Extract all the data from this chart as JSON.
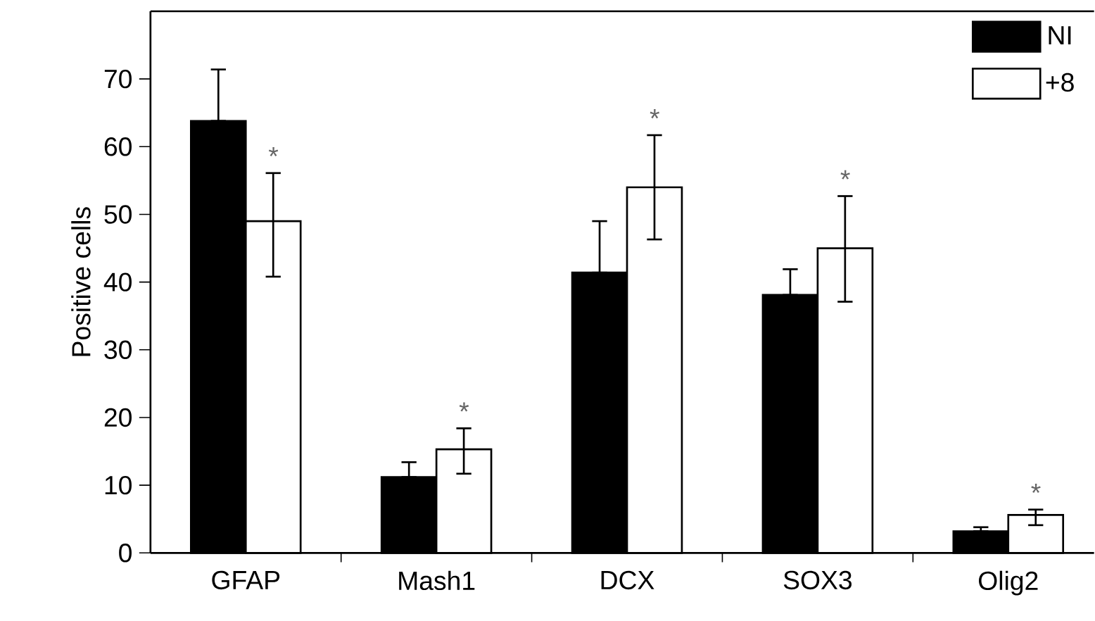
{
  "chart_data": {
    "type": "bar",
    "ylabel": "Positive cells",
    "categories": [
      "GFAP",
      "Mash1",
      "DCX",
      "SOX3",
      "Olig2"
    ],
    "series": [
      {
        "name": "NI",
        "color": "#000000",
        "values": [
          63.8,
          11.2,
          41.4,
          38.1,
          3.2
        ],
        "errors": [
          [
            63.8,
            71.4
          ],
          [
            11.2,
            13.4
          ],
          [
            41.4,
            49.0
          ],
          [
            38.1,
            41.9
          ],
          [
            3.2,
            3.8
          ]
        ]
      },
      {
        "name": "+8",
        "color": "#ffffff",
        "values": [
          49.0,
          15.3,
          54.0,
          45.0,
          5.6
        ],
        "errors": [
          [
            40.8,
            56.1
          ],
          [
            11.7,
            18.4
          ],
          [
            46.3,
            61.7
          ],
          [
            37.1,
            52.7
          ],
          [
            4.1,
            6.4
          ]
        ]
      }
    ],
    "ylim": [
      0,
      80
    ],
    "yticks": [
      0,
      10,
      20,
      30,
      40,
      50,
      60,
      70
    ],
    "legend": "top right",
    "annotations": [
      "*",
      "*",
      "*",
      "*",
      "*"
    ]
  }
}
